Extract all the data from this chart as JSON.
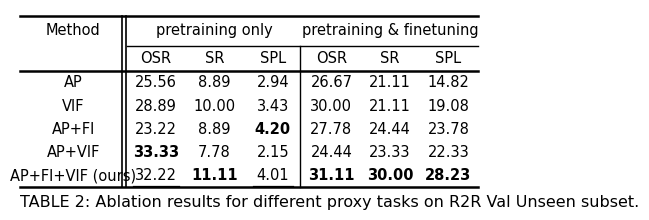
{
  "title": "TABLE 2: Ablation results for different proxy tasks on R2R Val Unseen subset.",
  "methods": [
    "AP",
    "VIF",
    "AP+FI",
    "AP+VIF",
    "AP+FI+VIF (ours)"
  ],
  "data": [
    [
      "25.56",
      "8.89",
      "2.94",
      "26.67",
      "21.11",
      "14.82"
    ],
    [
      "28.89",
      "10.00",
      "3.43",
      "30.00",
      "21.11",
      "19.08"
    ],
    [
      "23.22",
      "8.89",
      "4.20",
      "27.78",
      "24.44",
      "23.78"
    ],
    [
      "33.33",
      "7.78",
      "2.15",
      "24.44",
      "23.33",
      "22.33"
    ],
    [
      "32.22",
      "11.11",
      "4.01",
      "31.11",
      "30.00",
      "28.23"
    ]
  ],
  "bold": [
    [
      false,
      false,
      false,
      false,
      false,
      false
    ],
    [
      false,
      false,
      false,
      false,
      false,
      false
    ],
    [
      false,
      false,
      true,
      false,
      false,
      false
    ],
    [
      true,
      false,
      false,
      false,
      false,
      false
    ],
    [
      false,
      true,
      false,
      true,
      true,
      true
    ]
  ],
  "underline": [
    [
      false,
      false,
      false,
      false,
      false,
      false
    ],
    [
      false,
      false,
      false,
      false,
      false,
      false
    ],
    [
      false,
      false,
      false,
      false,
      false,
      false
    ],
    [
      false,
      false,
      false,
      false,
      false,
      false
    ],
    [
      true,
      false,
      true,
      false,
      false,
      false
    ]
  ],
  "background_color": "#ffffff",
  "font_color": "#000000",
  "fontsize": 10.5,
  "caption_fontsize": 11.5,
  "group1_label": "pretraining only",
  "group2_label": "pretraining & finetuning",
  "method_header": "Method",
  "col_headers": [
    "OSR",
    "SR",
    "SPL",
    "OSR",
    "SR",
    "SPL"
  ]
}
